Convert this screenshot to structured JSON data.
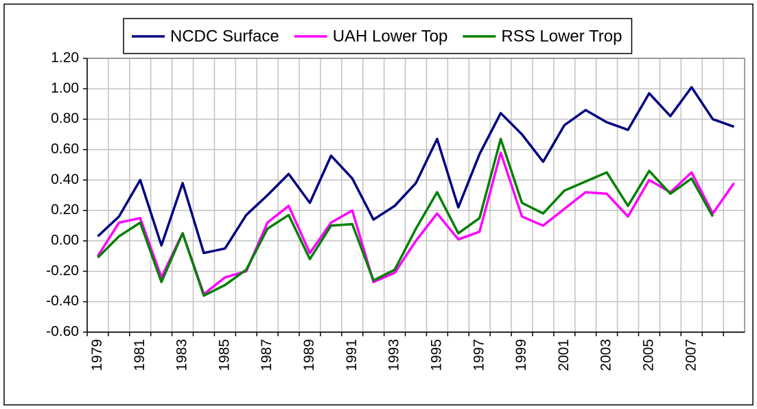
{
  "chart_data": {
    "type": "line",
    "categories": [
      "1979",
      null,
      "1981",
      null,
      "1983",
      null,
      "1985",
      null,
      "1987",
      null,
      "1989",
      null,
      "1991",
      null,
      "1993",
      null,
      "1995",
      null,
      "1997",
      null,
      "1999",
      null,
      "2001",
      null,
      "2003",
      null,
      "2005",
      null,
      "2007",
      null,
      null
    ],
    "series": [
      {
        "name": "NCDC Surface",
        "color": "#000080",
        "values": [
          0.03,
          0.16,
          0.4,
          -0.03,
          0.38,
          -0.08,
          -0.05,
          0.17,
          0.3,
          0.44,
          0.25,
          0.56,
          0.41,
          0.14,
          0.23,
          0.38,
          0.67,
          0.22,
          0.57,
          0.84,
          0.7,
          0.52,
          0.76,
          0.86,
          0.78,
          0.73,
          0.97,
          0.82,
          1.01,
          0.8,
          0.75
        ]
      },
      {
        "name": "UAH Lower Top",
        "color": "#ff00ff",
        "values": [
          -0.1,
          0.12,
          0.15,
          -0.24,
          0.05,
          -0.35,
          -0.24,
          -0.2,
          0.12,
          0.23,
          -0.08,
          0.12,
          0.2,
          -0.27,
          -0.21,
          0.0,
          0.18,
          0.01,
          0.06,
          0.58,
          0.16,
          0.1,
          0.21,
          0.32,
          0.31,
          0.16,
          0.4,
          0.32,
          0.45,
          0.18,
          0.38
        ]
      },
      {
        "name": "RSS Lower Trop",
        "color": "#008000",
        "values": [
          -0.11,
          0.03,
          0.12,
          -0.27,
          0.05,
          -0.36,
          -0.29,
          -0.19,
          0.08,
          0.17,
          -0.12,
          0.1,
          0.11,
          -0.26,
          -0.19,
          0.08,
          0.32,
          0.05,
          0.15,
          0.67,
          0.25,
          0.18,
          0.33,
          0.39,
          0.45,
          0.23,
          0.46,
          0.31,
          0.41,
          0.16,
          null
        ]
      }
    ],
    "ylim": [
      -0.6,
      1.2
    ],
    "yticks": [
      {
        "value": -0.6,
        "label": "-0.60"
      },
      {
        "value": -0.4,
        "label": "-0.40"
      },
      {
        "value": -0.2,
        "label": "-0.20"
      },
      {
        "value": 0,
        "label": "0.00"
      },
      {
        "value": 0.2,
        "label": "0.20"
      },
      {
        "value": 0.4,
        "label": "0.40"
      },
      {
        "value": 0.6,
        "label": "0.60"
      },
      {
        "value": 0.8,
        "label": "0.80"
      },
      {
        "value": 1.0,
        "label": "1.00"
      },
      {
        "value": 1.2,
        "label": "1.20"
      }
    ],
    "grid": true,
    "legend": "top"
  }
}
